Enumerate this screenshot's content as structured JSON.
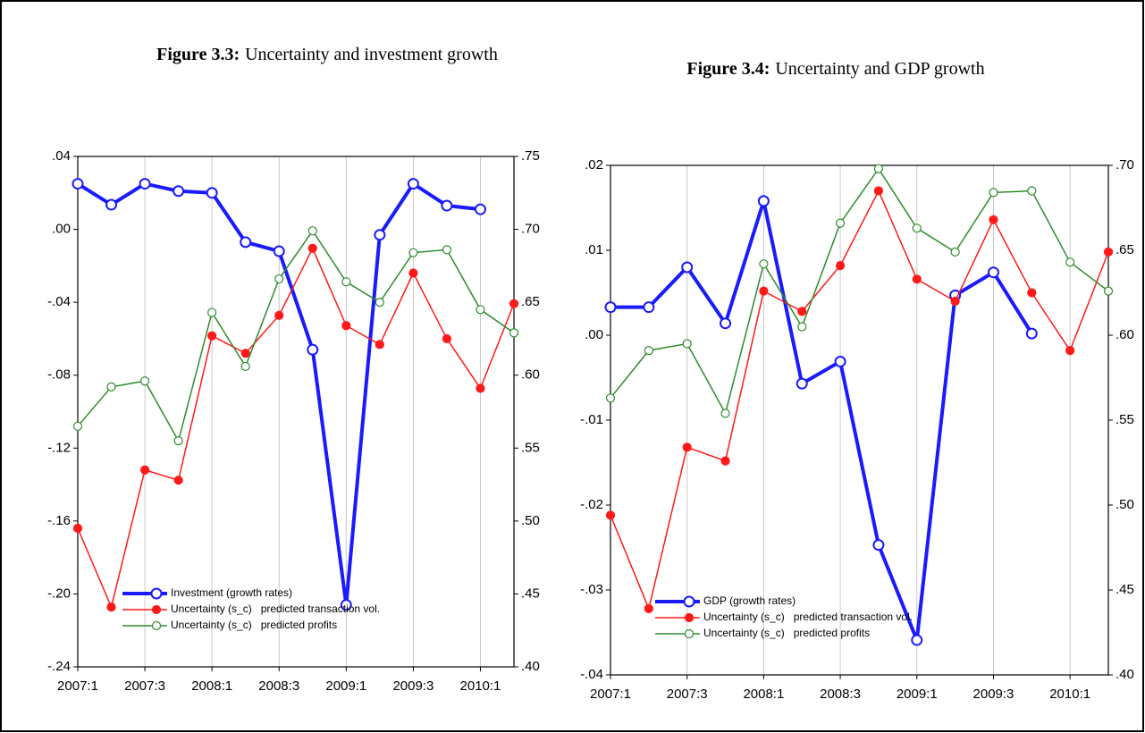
{
  "chart_data": [
    {
      "type": "line",
      "title_label": "Figure 3.3:",
      "title": "Uncertainty and investment growth",
      "categories": [
        "2007:1",
        null,
        "2007:3",
        null,
        "2008:1",
        null,
        "2008:3",
        null,
        "2009:1",
        null,
        "2009:3",
        null,
        "2010:1",
        null
      ],
      "ylim": [
        -0.24,
        0.04
      ],
      "yticks": [
        {
          "value": -0.24,
          "label": "-.24"
        },
        {
          "value": -0.2,
          "label": "-.20"
        },
        {
          "value": -0.16,
          "label": "-.16"
        },
        {
          "value": -0.12,
          "label": "-.12"
        },
        {
          "value": -0.08,
          "label": "-.08"
        },
        {
          "value": -0.04,
          "label": "-.04"
        },
        {
          "value": 0,
          "label": ".00"
        },
        {
          "value": 0.04,
          "label": ".04"
        }
      ],
      "y2lim": [
        0.4,
        0.75
      ],
      "y2ticks": [
        {
          "value": 0.4,
          "label": ".40"
        },
        {
          "value": 0.45,
          "label": ".45"
        },
        {
          "value": 0.5,
          "label": ".50"
        },
        {
          "value": 0.55,
          "label": ".55"
        },
        {
          "value": 0.6,
          "label": ".60"
        },
        {
          "value": 0.65,
          "label": ".65"
        },
        {
          "value": 0.7,
          "label": ".70"
        },
        {
          "value": 0.75,
          "label": ".75"
        }
      ],
      "grid": "x",
      "legend": "lower left",
      "series": [
        {
          "name": "Investment (growth rates)",
          "color": "#1a1aff",
          "axis": "y",
          "marker": "hollow",
          "line_width": 4,
          "values": [
            0.025,
            0.0135,
            0.025,
            0.021,
            0.02,
            -0.007,
            -0.012,
            -0.066,
            -0.206,
            -0.003,
            0.025,
            0.013,
            0.011,
            null
          ]
        },
        {
          "name": "Uncertainty (s_c)   predicted transaction vol.",
          "color": "#ff1a1a",
          "axis": "y2",
          "marker": "filled",
          "line_width": 1.5,
          "values": [
            0.495,
            0.441,
            0.535,
            0.528,
            0.627,
            0.615,
            0.641,
            0.687,
            0.634,
            0.621,
            0.67,
            0.625,
            0.591,
            0.649
          ]
        },
        {
          "name": "Uncertainty (s_c)   predicted profits",
          "color": "#2e8b2e",
          "axis": "y2",
          "marker": "hollow",
          "line_width": 1.5,
          "values": [
            0.565,
            0.592,
            0.596,
            0.555,
            0.643,
            0.606,
            0.666,
            0.699,
            0.664,
            0.65,
            0.684,
            0.686,
            0.645,
            0.629
          ]
        }
      ]
    },
    {
      "type": "line",
      "title_label": "Figure 3.4:",
      "title": "Uncertainty and GDP growth",
      "categories": [
        "2007:1",
        null,
        "2007:3",
        null,
        "2008:1",
        null,
        "2008:3",
        null,
        "2009:1",
        null,
        "2009:3",
        null,
        "2010:1",
        null
      ],
      "ylim": [
        -0.04,
        0.02
      ],
      "yticks": [
        {
          "value": -0.04,
          "label": "-.04"
        },
        {
          "value": -0.03,
          "label": "-.03"
        },
        {
          "value": -0.02,
          "label": "-.02"
        },
        {
          "value": -0.01,
          "label": "-.01"
        },
        {
          "value": 0,
          "label": ".00"
        },
        {
          "value": 0.01,
          "label": ".01"
        },
        {
          "value": 0.02,
          "label": ".02"
        }
      ],
      "y2lim": [
        0.4,
        0.7
      ],
      "y2ticks": [
        {
          "value": 0.4,
          "label": ".40"
        },
        {
          "value": 0.45,
          "label": ".45"
        },
        {
          "value": 0.5,
          "label": ".50"
        },
        {
          "value": 0.55,
          "label": ".55"
        },
        {
          "value": 0.6,
          "label": ".60"
        },
        {
          "value": 0.65,
          "label": ".65"
        },
        {
          "value": 0.7,
          "label": ".70"
        }
      ],
      "grid": "x",
      "legend": "lower left",
      "series": [
        {
          "name": "GDP (growth rates)",
          "color": "#1a1aff",
          "axis": "y",
          "marker": "hollow",
          "line_width": 4,
          "values": [
            0.0033,
            0.0033,
            0.008,
            0.0014,
            0.0158,
            -0.0057,
            -0.0031,
            -0.0247,
            -0.0359,
            0.0047,
            0.0074,
            0.0002,
            null,
            null
          ]
        },
        {
          "name": "Uncertainty (s_c)   predicted transaction vol.",
          "color": "#ff1a1a",
          "axis": "y2",
          "marker": "filled",
          "line_width": 1.5,
          "values": [
            0.494,
            0.439,
            0.534,
            0.526,
            0.626,
            0.614,
            0.641,
            0.685,
            0.633,
            0.62,
            0.668,
            0.625,
            0.591,
            0.649
          ]
        },
        {
          "name": "Uncertainty (s_c)   predicted profits",
          "color": "#2e8b2e",
          "axis": "y2",
          "marker": "hollow",
          "line_width": 1.5,
          "values": [
            0.563,
            0.591,
            0.595,
            0.554,
            0.642,
            0.605,
            0.666,
            0.698,
            0.663,
            0.649,
            0.684,
            0.685,
            0.643,
            0.626
          ]
        }
      ]
    }
  ]
}
